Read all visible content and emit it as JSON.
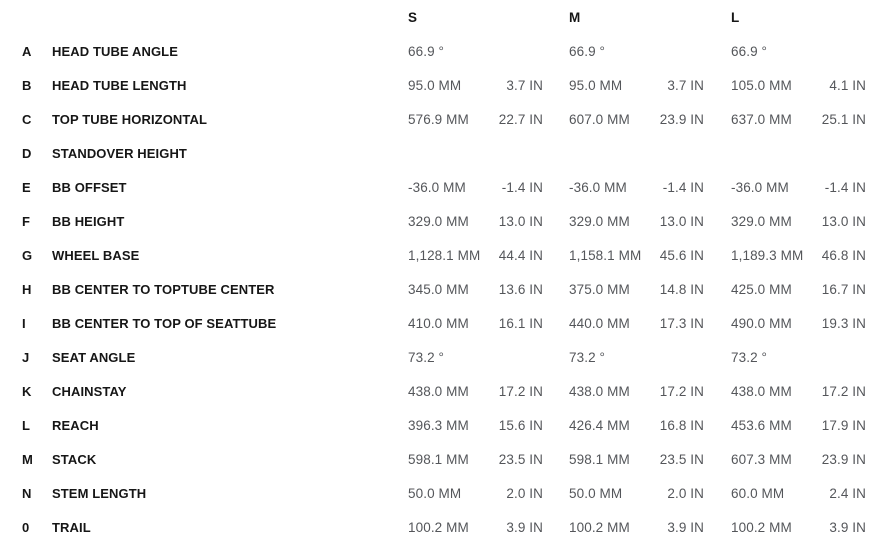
{
  "chart_data": {
    "type": "table",
    "size_headers": {
      "s": "S",
      "m": "M",
      "l": "L"
    },
    "unit_labels": [
      "MM",
      "IN"
    ],
    "rows": [
      {
        "letter": "A",
        "name": "HEAD TUBE ANGLE",
        "s_mm": "66.9 °",
        "s_in": "",
        "m_mm": "66.9 °",
        "m_in": "",
        "l_mm": "66.9 °",
        "l_in": ""
      },
      {
        "letter": "B",
        "name": "HEAD TUBE LENGTH",
        "s_mm": "95.0 MM",
        "s_in": "3.7 IN",
        "m_mm": "95.0 MM",
        "m_in": "3.7 IN",
        "l_mm": "105.0 MM",
        "l_in": "4.1 IN"
      },
      {
        "letter": "C",
        "name": "TOP TUBE HORIZONTAL",
        "s_mm": "576.9 MM",
        "s_in": "22.7 IN",
        "m_mm": "607.0 MM",
        "m_in": "23.9 IN",
        "l_mm": "637.0 MM",
        "l_in": "25.1 IN"
      },
      {
        "letter": "D",
        "name": "STANDOVER HEIGHT",
        "s_mm": "",
        "s_in": "",
        "m_mm": "",
        "m_in": "",
        "l_mm": "",
        "l_in": ""
      },
      {
        "letter": "E",
        "name": "BB OFFSET",
        "s_mm": "-36.0 MM",
        "s_in": "-1.4 IN",
        "m_mm": "-36.0 MM",
        "m_in": "-1.4 IN",
        "l_mm": "-36.0 MM",
        "l_in": "-1.4 IN"
      },
      {
        "letter": "F",
        "name": "BB HEIGHT",
        "s_mm": "329.0 MM",
        "s_in": "13.0 IN",
        "m_mm": "329.0 MM",
        "m_in": "13.0 IN",
        "l_mm": "329.0 MM",
        "l_in": "13.0 IN"
      },
      {
        "letter": "G",
        "name": "WHEEL BASE",
        "s_mm": "1,128.1 MM",
        "s_in": "44.4 IN",
        "m_mm": "1,158.1 MM",
        "m_in": "45.6 IN",
        "l_mm": "1,189.3 MM",
        "l_in": "46.8 IN"
      },
      {
        "letter": "H",
        "name": "BB CENTER TO TOPTUBE CENTER",
        "s_mm": "345.0 MM",
        "s_in": "13.6 IN",
        "m_mm": "375.0 MM",
        "m_in": "14.8 IN",
        "l_mm": "425.0 MM",
        "l_in": "16.7 IN"
      },
      {
        "letter": "I",
        "name": "BB CENTER TO TOP OF SEATTUBE",
        "s_mm": "410.0 MM",
        "s_in": "16.1 IN",
        "m_mm": "440.0 MM",
        "m_in": "17.3 IN",
        "l_mm": "490.0 MM",
        "l_in": "19.3 IN"
      },
      {
        "letter": "J",
        "name": "SEAT ANGLE",
        "s_mm": "73.2 °",
        "s_in": "",
        "m_mm": "73.2 °",
        "m_in": "",
        "l_mm": "73.2 °",
        "l_in": ""
      },
      {
        "letter": "K",
        "name": "CHAINSTAY",
        "s_mm": "438.0 MM",
        "s_in": "17.2 IN",
        "m_mm": "438.0 MM",
        "m_in": "17.2 IN",
        "l_mm": "438.0 MM",
        "l_in": "17.2 IN"
      },
      {
        "letter": "L",
        "name": "REACH",
        "s_mm": "396.3 MM",
        "s_in": "15.6 IN",
        "m_mm": "426.4 MM",
        "m_in": "16.8 IN",
        "l_mm": "453.6 MM",
        "l_in": "17.9 IN"
      },
      {
        "letter": "M",
        "name": "STACK",
        "s_mm": "598.1 MM",
        "s_in": "23.5 IN",
        "m_mm": "598.1 MM",
        "m_in": "23.5 IN",
        "l_mm": "607.3 MM",
        "l_in": "23.9 IN"
      },
      {
        "letter": "N",
        "name": "STEM LENGTH",
        "s_mm": "50.0 MM",
        "s_in": "2.0 IN",
        "m_mm": "50.0 MM",
        "m_in": "2.0 IN",
        "l_mm": "60.0 MM",
        "l_in": "2.4 IN"
      },
      {
        "letter": "0",
        "name": "TRAIL",
        "s_mm": "100.2 MM",
        "s_in": "3.9 IN",
        "m_mm": "100.2 MM",
        "m_in": "3.9 IN",
        "l_mm": "100.2 MM",
        "l_in": "3.9 IN"
      }
    ]
  },
  "colors": {
    "label_text": "#161616",
    "value_text": "#54565a",
    "background": "#ffffff"
  }
}
